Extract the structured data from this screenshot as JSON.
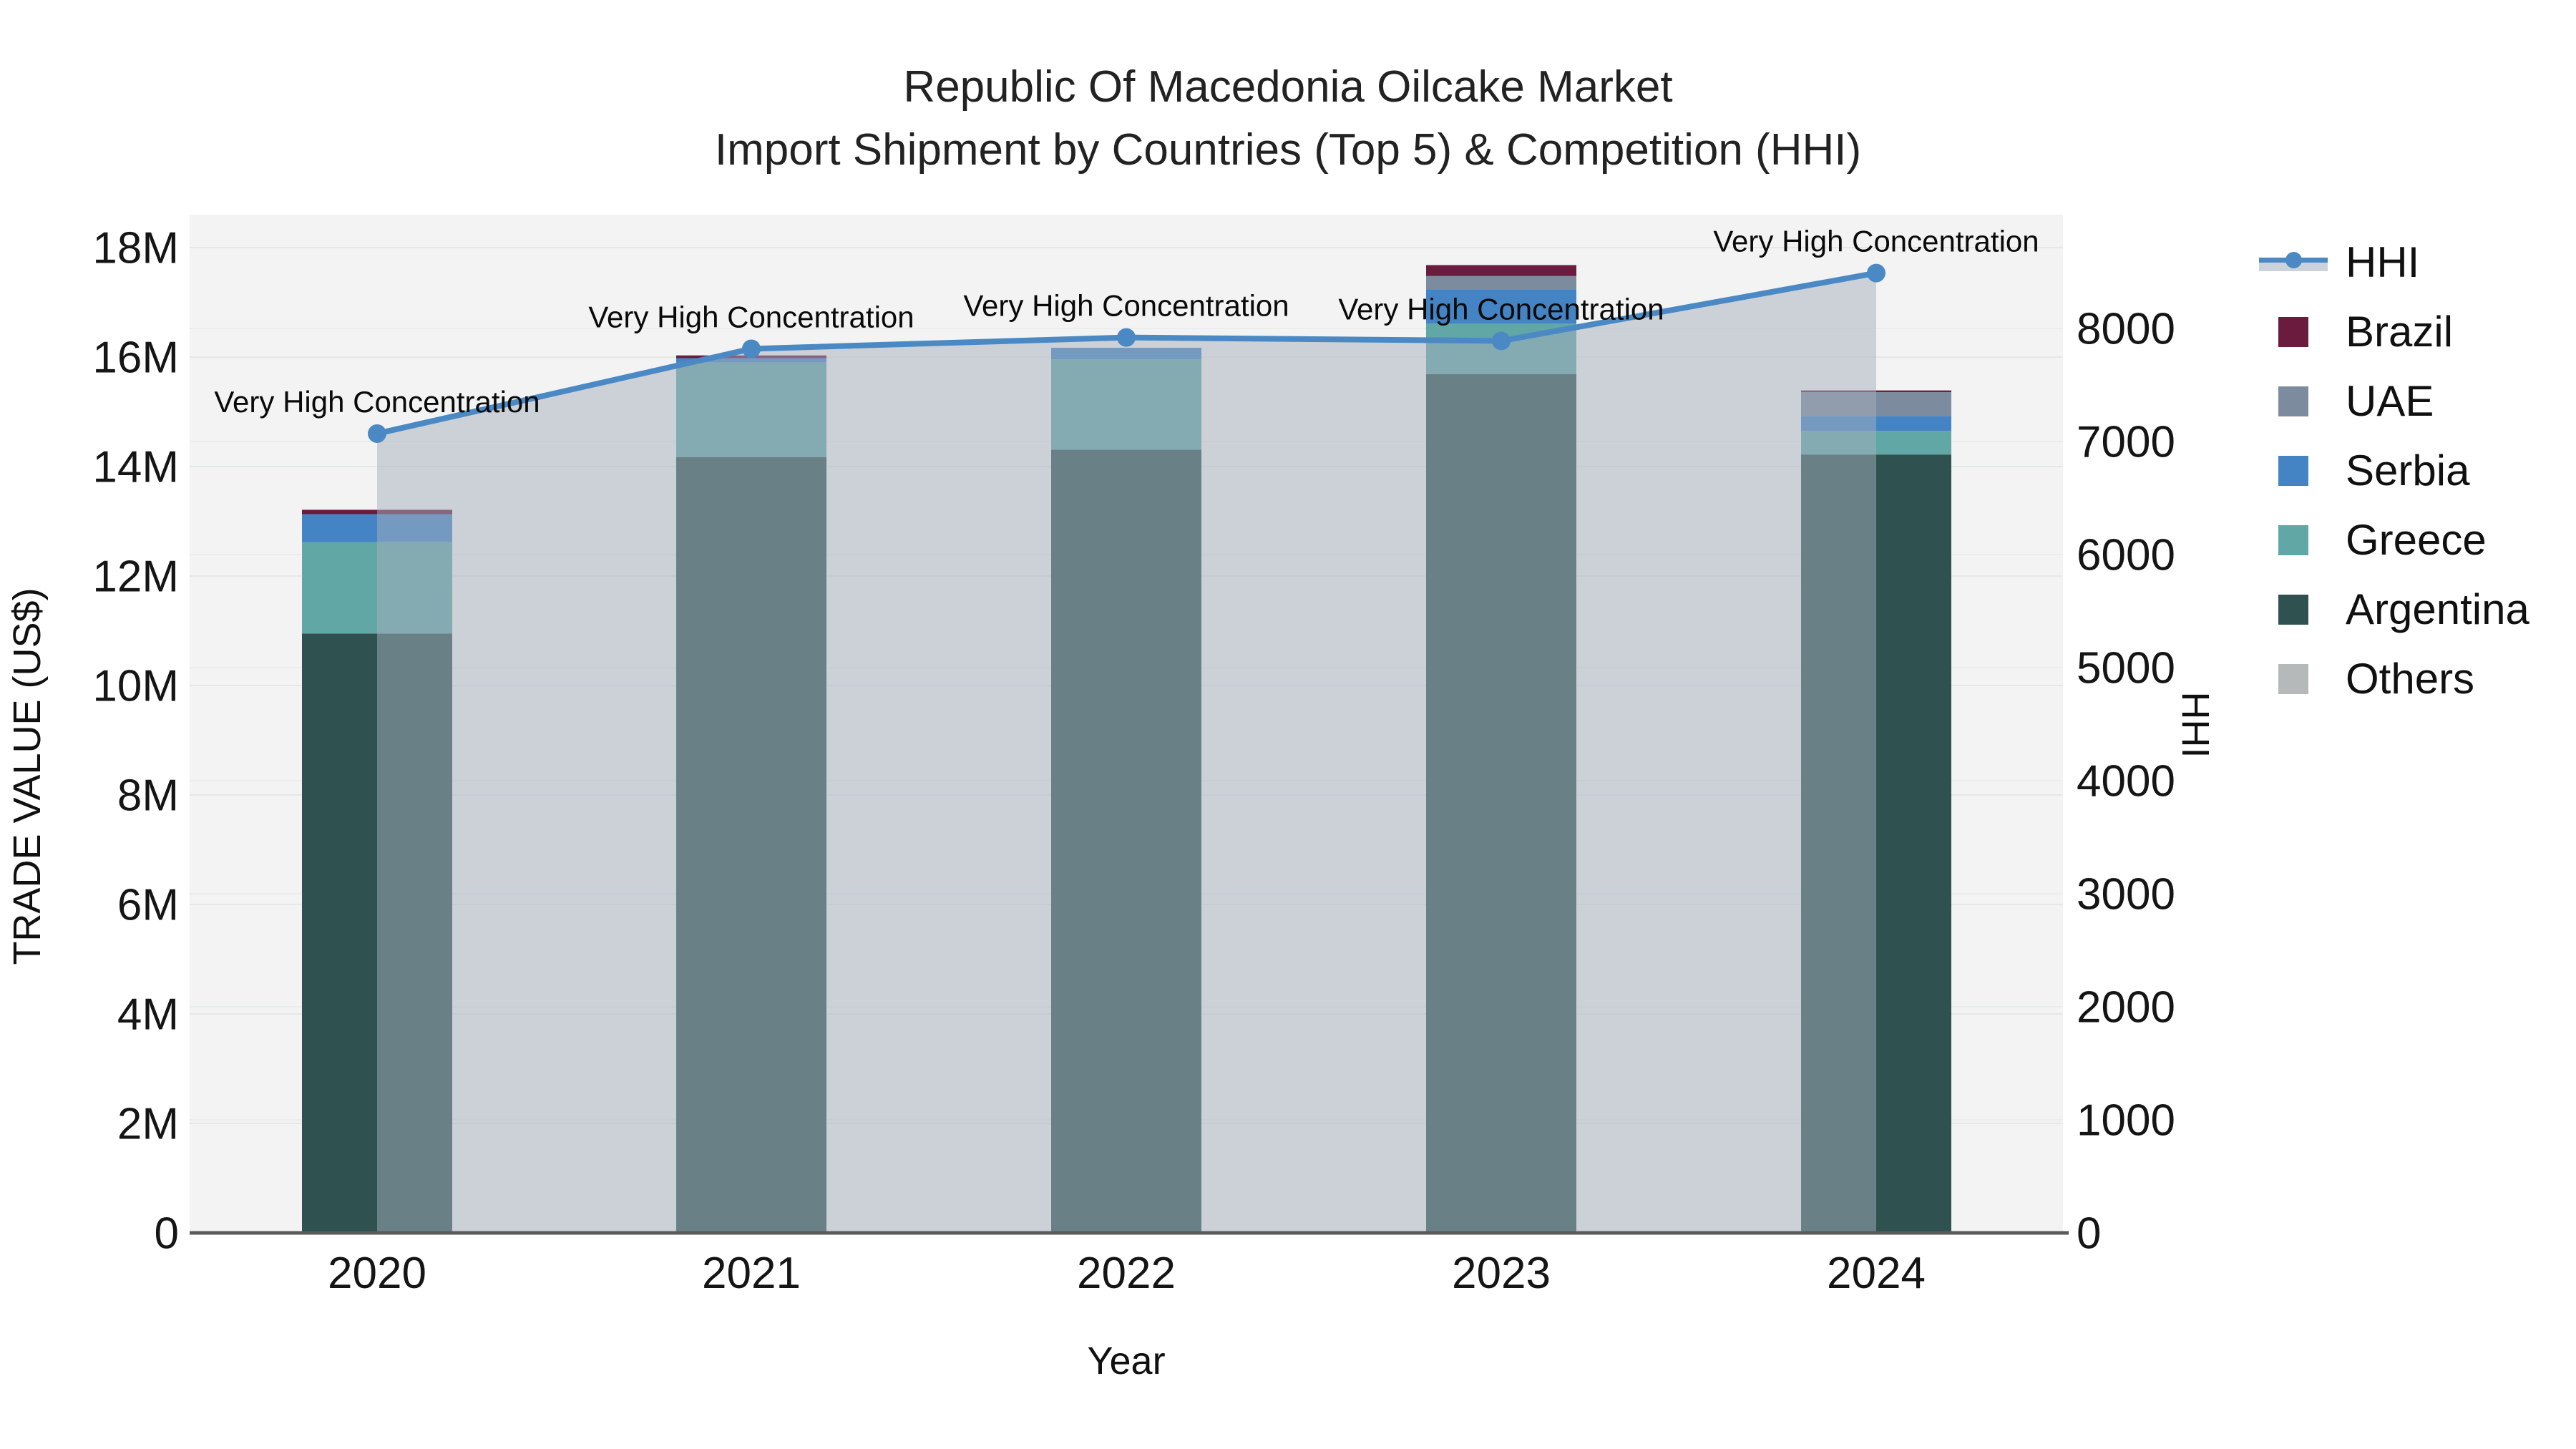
{
  "title": {
    "line1": "Republic Of Macedonia Oilcake Market",
    "line2": "Import Shipment by Countries (Top 5) & Competition (HHI)"
  },
  "axes": {
    "x_title": "Year",
    "y_left_title": "TRADE VALUE (US$)",
    "y_right_title": "HHI",
    "y_left_tick_labels": [
      "0",
      "2M",
      "4M",
      "6M",
      "8M",
      "10M",
      "12M",
      "14M",
      "16M",
      "18M"
    ],
    "y_right_tick_labels": [
      "0",
      "1000",
      "2000",
      "3000",
      "4000",
      "5000",
      "6000",
      "7000",
      "8000"
    ]
  },
  "legend": {
    "items": [
      {
        "label": "HHI",
        "type": "line",
        "color": "#4b89c5"
      },
      {
        "label": "Brazil",
        "type": "square",
        "color": "#6b1b3e"
      },
      {
        "label": "UAE",
        "type": "square",
        "color": "#7c8b9d"
      },
      {
        "label": "Serbia",
        "type": "square",
        "color": "#4484c4"
      },
      {
        "label": "Greece",
        "type": "square",
        "color": "#61a7a5"
      },
      {
        "label": "Argentina",
        "type": "square",
        "color": "#2f5150"
      },
      {
        "label": "Others",
        "type": "square",
        "color": "#b5b9b9"
      }
    ]
  },
  "chart_data": {
    "type": "bar+line",
    "title": "Republic Of Macedonia Oilcake Market — Import Shipment by Countries (Top 5) & Competition (HHI)",
    "categories": [
      "2020",
      "2021",
      "2022",
      "2023",
      "2024"
    ],
    "bar_unit": "Trade value, millions of US$",
    "stack_order_note": "series listed bottom-to-top",
    "series": [
      {
        "name": "Others",
        "values": [
          0,
          0,
          0,
          0,
          0
        ],
        "color": "#b5b9b9"
      },
      {
        "name": "Argentina",
        "values": [
          10.95,
          14.17,
          14.31,
          15.69,
          14.22
        ],
        "color": "#2f5150"
      },
      {
        "name": "Greece",
        "values": [
          1.67,
          1.73,
          1.65,
          0.92,
          0.43
        ],
        "color": "#61a7a5"
      },
      {
        "name": "Serbia",
        "values": [
          0.51,
          0.08,
          0.21,
          0.63,
          0.27
        ],
        "color": "#4484c4"
      },
      {
        "name": "UAE",
        "values": [
          0.0,
          0.0,
          0.0,
          0.24,
          0.44
        ],
        "color": "#7c8b9d"
      },
      {
        "name": "Brazil",
        "values": [
          0.08,
          0.05,
          0.0,
          0.2,
          0.03
        ],
        "color": "#6b1b3e"
      }
    ],
    "totals": [
      13.21,
      16.03,
      16.17,
      17.68,
      15.39
    ],
    "line_series": {
      "name": "HHI",
      "axis": "right",
      "values": [
        7070,
        7820,
        7920,
        7890,
        8490
      ],
      "color": "#4b89c5",
      "fill_color": "rgba(165,175,190,0.5)",
      "area_fill": true
    },
    "annotations": [
      {
        "text": "Very High Concentration",
        "x": "2020"
      },
      {
        "text": "Very High Concentration",
        "x": "2021"
      },
      {
        "text": "Very High Concentration",
        "x": "2022"
      },
      {
        "text": "Very High Concentration",
        "x": "2023"
      },
      {
        "text": "Very High Concentration",
        "x": "2024"
      }
    ],
    "xlabel": "Year",
    "ylabel_left": "TRADE VALUE (US$)",
    "ylabel_right": "HHI",
    "ylim_left_musd": [
      0,
      18.6
    ],
    "ylim_right": [
      0,
      9000
    ],
    "yticks_left_musd": [
      0,
      2,
      4,
      6,
      8,
      10,
      12,
      14,
      16,
      18
    ],
    "yticks_right": [
      0,
      1000,
      2000,
      3000,
      4000,
      5000,
      6000,
      7000,
      8000
    ],
    "grid": true,
    "legend_position": "right",
    "plot_bg": "#f2f3f2"
  }
}
